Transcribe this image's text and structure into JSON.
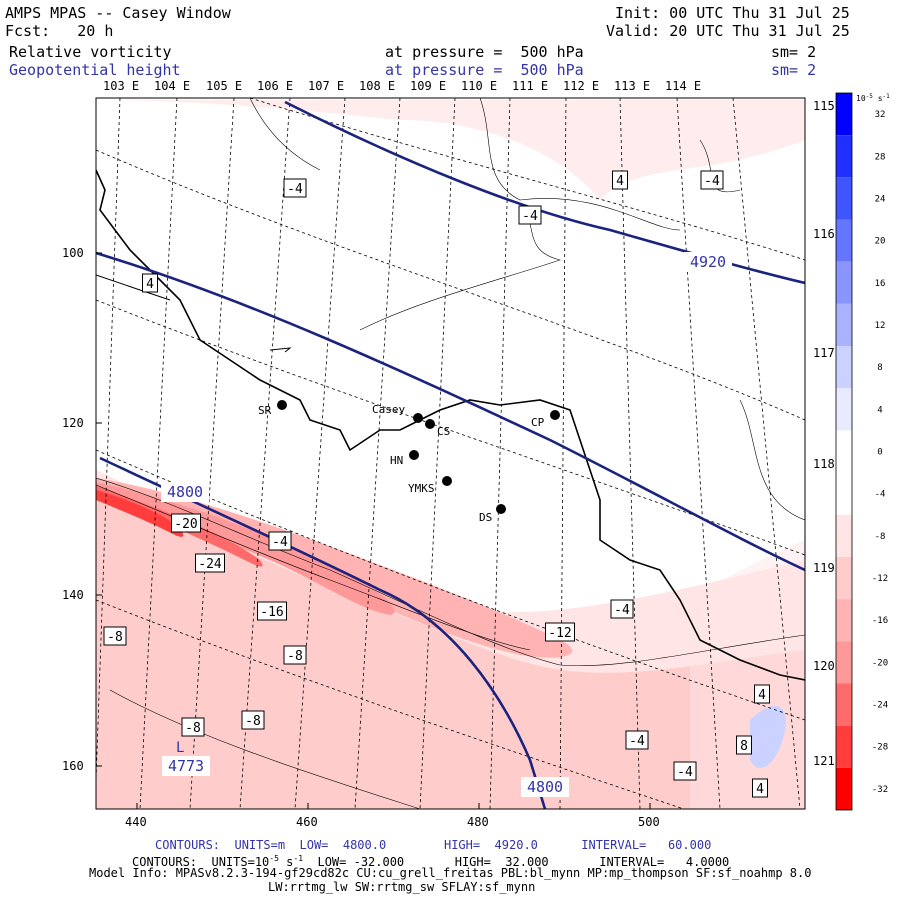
{
  "header": {
    "title": "AMPS MPAS -- Casey Window",
    "forecast": "Fcst:   20 h",
    "init": "Init: 00 UTC Thu 31 Jul 25",
    "valid": "Valid: 20 UTC Thu 31 Jul 25",
    "field1": {
      "name": "Relative vorticity",
      "pressure": "at pressure =  500 hPa",
      "sm": "sm= 2"
    },
    "field2": {
      "name": "Geopotential height",
      "pressure": "at pressure =  500 hPa",
      "sm": "sm= 2"
    }
  },
  "longitudes_top": [
    "103 E",
    "104 E",
    "105 E",
    "106 E",
    "107 E",
    "108 E",
    "109 E",
    "110 E",
    "111 E",
    "112 E",
    "113 E",
    "114 E"
  ],
  "longitudes_right": [
    "115 E",
    "116 E",
    "117 E",
    "118 E",
    "119 E",
    "120 E",
    "121 E"
  ],
  "x_ticks": [
    "440",
    "460",
    "480",
    "500"
  ],
  "y_ticks": [
    "100",
    "120",
    "140",
    "160"
  ],
  "colorbar": {
    "units": "10",
    "units_exp": "-5",
    "units_tail": "s",
    "units_tail_exp": "-1",
    "labels": [
      "32",
      "28",
      "24",
      "20",
      "16",
      "12",
      "8",
      "4",
      "0",
      "-4",
      "-8",
      "-12",
      "-16",
      "-20",
      "-24",
      "-28",
      "-32"
    ],
    "colors": [
      "#0000ff",
      "#1f30ff",
      "#3f55ff",
      "#6475ff",
      "#8a95ff",
      "#aab3ff",
      "#ccd2ff",
      "#e8ebff",
      "#ffffff",
      "#ffffff",
      "#ffe5e5",
      "#ffcccc",
      "#ffb3b3",
      "#ff9999",
      "#ff6b6b",
      "#ff3d3d",
      "#ff0000"
    ]
  },
  "stations": [
    {
      "name": "SR"
    },
    {
      "name": "Casey"
    },
    {
      "name": "CS"
    },
    {
      "name": "CP"
    },
    {
      "name": "HN"
    },
    {
      "name": "YMKS"
    },
    {
      "name": "DS"
    }
  ],
  "height_labels": [
    "4920",
    "4800",
    "4800",
    "4773"
  ],
  "low_marker": "L",
  "vorticity_labels": [
    "-4",
    "4",
    "-4",
    "4",
    "-4",
    "-20",
    "-24",
    "-4",
    "-16",
    "-4",
    "-8",
    "-12",
    "-8",
    "-8",
    "-8",
    "-4",
    "4",
    "8",
    "4",
    "-4"
  ],
  "footer": {
    "height_contours": "CONTOURS:  UNITS=m  LOW=  4800.0        HIGH=  4920.0      INTERVAL=   60.000",
    "vort_contours_a": "CONTOURS:  UNITS=10",
    "vort_contours_exp1": "-5",
    "vort_contours_b": " s",
    "vort_contours_exp2": "-1",
    "vort_contours_c": "  LOW= -32.000       HIGH=  32.000       INTERVAL=   4.0000",
    "model_info": "Model Info: MPASv8.2.3-194-gf29cd82c CU:cu_grell_freitas PBL:bl_mynn MP:mp_thompson SF:sf_noahmp 8.0",
    "model_info2": "LW:rrtmg_lw SW:rrtmg_sw SFLAY:sf_mynn"
  },
  "colors": {
    "height_contour": "#1a237e",
    "text_blue": "#3333aa"
  }
}
